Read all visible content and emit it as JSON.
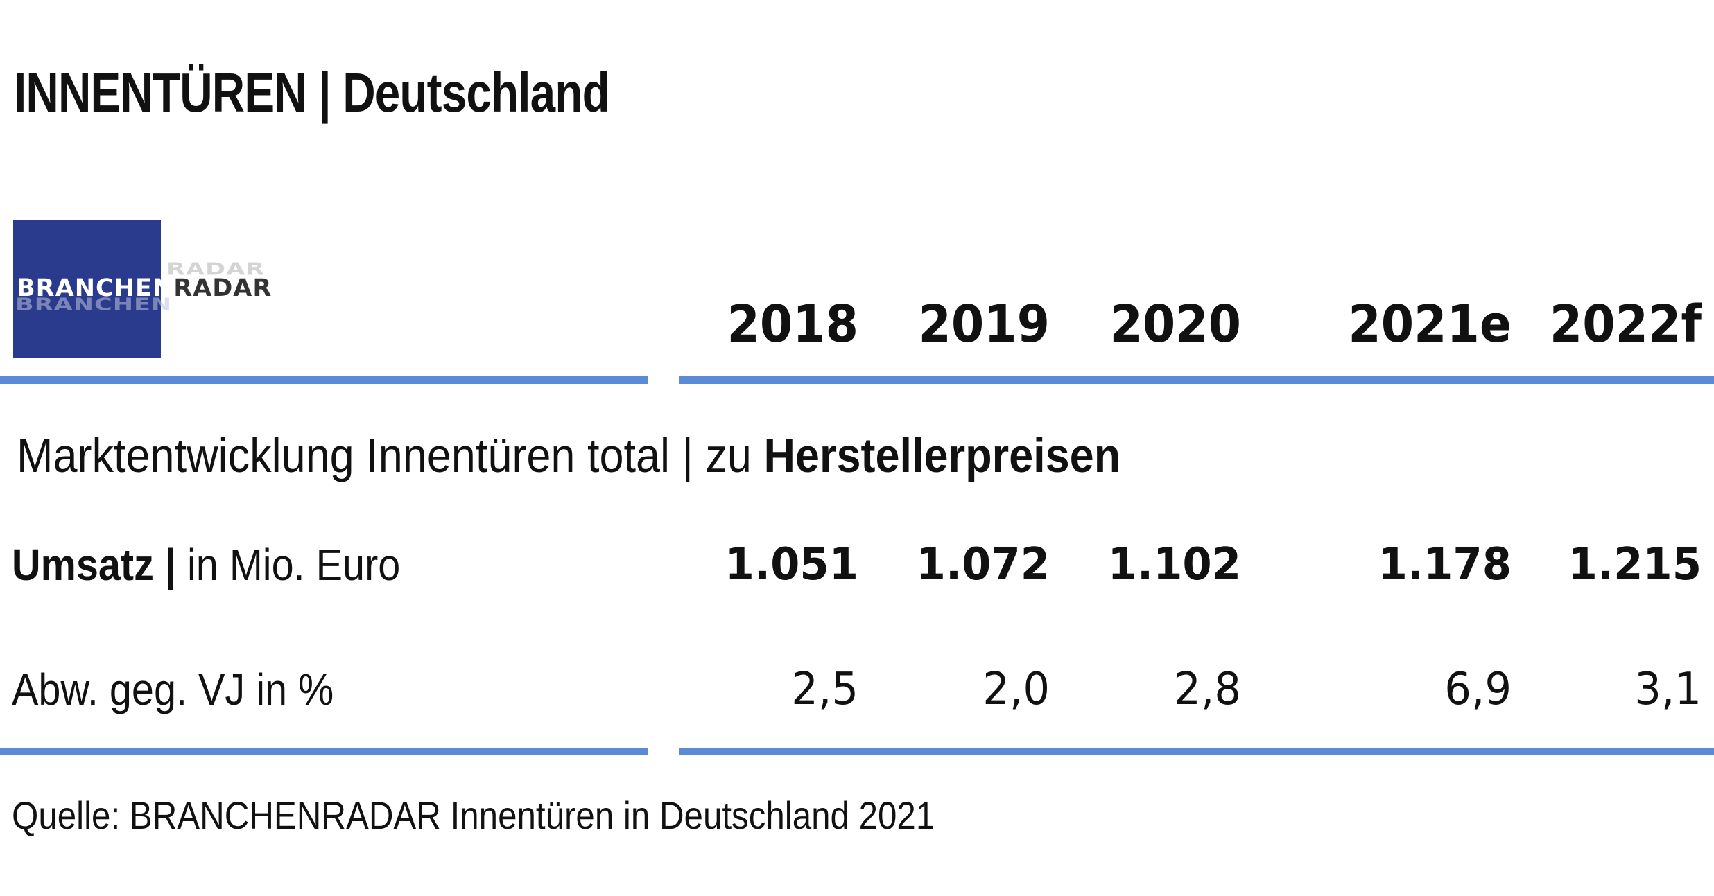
{
  "title": {
    "main": "INNENTÜREN",
    "separator": " | ",
    "region": "Deutschland"
  },
  "logo": {
    "part1": "BRANCHEN",
    "part2": "RADAR",
    "colors": {
      "box": "#2a3b8e",
      "part1": "#ffffff",
      "part2": "#333333"
    }
  },
  "subtitle": {
    "plain": "Marktentwicklung Innentüren total | zu ",
    "bold": "Herstellerpreisen"
  },
  "chart_data": {
    "type": "table",
    "columns": [
      "2018",
      "2019",
      "2020",
      "2021e",
      "2022f"
    ],
    "rows": [
      {
        "label_bold": "Umsatz |",
        "label_plain": " in Mio. Euro",
        "values": [
          "1.051",
          "1.072",
          "1.102",
          "1.178",
          "1.215"
        ]
      },
      {
        "label_bold": "",
        "label_plain": "Abw. geg. VJ in %",
        "values": [
          "2,5",
          "2,0",
          "2,8",
          "6,9",
          "3,1"
        ]
      }
    ]
  },
  "source": "Quelle: BRANCHENRADAR Innentüren in Deutschland 2021",
  "colors": {
    "rule": "#5b8ad6",
    "text": "#111111"
  }
}
